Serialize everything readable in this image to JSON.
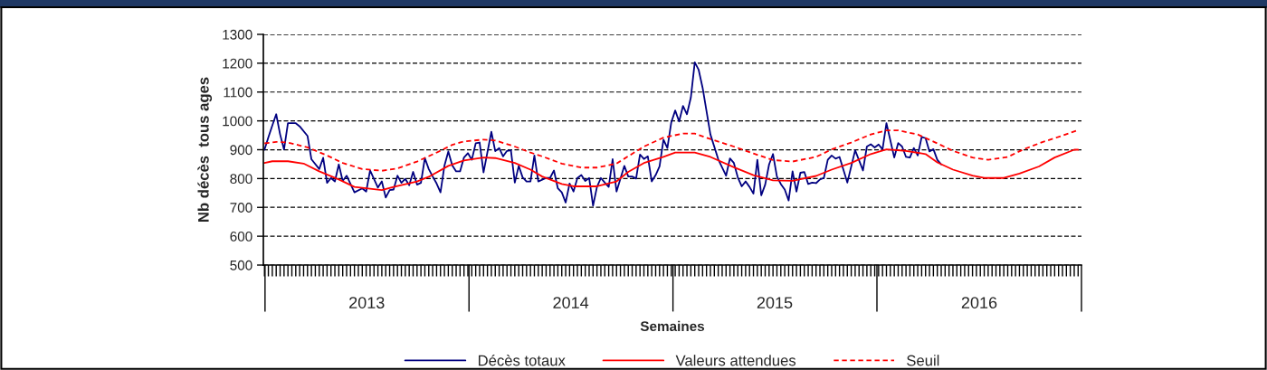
{
  "chart_data": {
    "type": "line",
    "xlabel": "Semaines",
    "ylabel": "Nb décès  tous ages",
    "xlim": [
      "2012-12-29",
      "2017-01-01"
    ],
    "xticks": [
      {
        "value": "2013-01-01",
        "label": null
      },
      {
        "value": "2013-07-02",
        "label": "2013"
      },
      {
        "value": "2014-01-01",
        "label": null
      },
      {
        "value": "2014-07-02",
        "label": "2014"
      },
      {
        "value": "2015-01-01",
        "label": null
      },
      {
        "value": "2015-07-02",
        "label": "2015"
      },
      {
        "value": "2016-01-01",
        "label": null
      },
      {
        "value": "2016-07-02",
        "label": "2016"
      },
      {
        "value": "2017-01-01",
        "label": null
      }
    ],
    "ylim": [
      500,
      1300
    ],
    "yticks": [
      500,
      600,
      700,
      800,
      900,
      1000,
      1100,
      1200,
      1300
    ],
    "grid": "y",
    "legend": "bottom",
    "series": [
      {
        "name": "Décès totaux",
        "color": "#000080",
        "line_style": "solid",
        "x": [
          "2012-12-31",
          "2013-01-07",
          "2013-01-14",
          "2013-01-21",
          "2013-01-28",
          "2013-02-04",
          "2013-02-11",
          "2013-02-25",
          "2013-03-04",
          "2013-03-18",
          "2013-03-25",
          "2013-04-08",
          "2013-04-15",
          "2013-04-22",
          "2013-04-29",
          "2013-05-06",
          "2013-05-13",
          "2013-05-20",
          "2013-05-27",
          "2013-06-10",
          "2013-06-24",
          "2013-07-01",
          "2013-07-08",
          "2013-07-22",
          "2013-07-29",
          "2013-08-05",
          "2013-08-12",
          "2013-08-19",
          "2013-08-26",
          "2013-09-02",
          "2013-09-09",
          "2013-09-16",
          "2013-09-23",
          "2013-09-30",
          "2013-10-07",
          "2013-10-14",
          "2013-10-21",
          "2013-10-28",
          "2013-11-04",
          "2013-11-11",
          "2013-11-18",
          "2013-11-25",
          "2013-12-02",
          "2013-12-09",
          "2013-12-16",
          "2013-12-23",
          "2013-12-30",
          "2014-01-06",
          "2014-01-13",
          "2014-01-20",
          "2014-01-27",
          "2014-02-10",
          "2014-02-17",
          "2014-02-24",
          "2014-03-03",
          "2014-03-10",
          "2014-03-17",
          "2014-03-24",
          "2014-03-31",
          "2014-04-07",
          "2014-04-14",
          "2014-04-21",
          "2014-04-28",
          "2014-05-05",
          "2014-05-19",
          "2014-05-26",
          "2014-06-02",
          "2014-06-09",
          "2014-06-16",
          "2014-06-23",
          "2014-06-30",
          "2014-07-07",
          "2014-07-14",
          "2014-07-21",
          "2014-07-28",
          "2014-08-04",
          "2014-08-11",
          "2014-08-18",
          "2014-08-25",
          "2014-09-01",
          "2014-09-08",
          "2014-09-15",
          "2014-09-22",
          "2014-10-06",
          "2014-10-13",
          "2014-10-20",
          "2014-10-27",
          "2014-11-03",
          "2014-11-10",
          "2014-11-17",
          "2014-11-24",
          "2014-12-01",
          "2014-12-08",
          "2014-12-15",
          "2014-12-22",
          "2014-12-29",
          "2015-01-05",
          "2015-01-12",
          "2015-01-19",
          "2015-01-26",
          "2015-02-02",
          "2015-02-09",
          "2015-02-16",
          "2015-02-23",
          "2015-03-09",
          "2015-03-23",
          "2015-04-06",
          "2015-04-13",
          "2015-04-20",
          "2015-04-27",
          "2015-05-04",
          "2015-05-11",
          "2015-05-18",
          "2015-05-25",
          "2015-06-01",
          "2015-06-08",
          "2015-06-15",
          "2015-06-22",
          "2015-06-29",
          "2015-07-06",
          "2015-07-13",
          "2015-07-20",
          "2015-07-27",
          "2015-08-03",
          "2015-08-10",
          "2015-08-17",
          "2015-08-24",
          "2015-08-31",
          "2015-09-07",
          "2015-09-14",
          "2015-09-21",
          "2015-09-28",
          "2015-10-05",
          "2015-10-12",
          "2015-10-19",
          "2015-10-26",
          "2015-11-09",
          "2015-11-23",
          "2015-12-07",
          "2015-12-14",
          "2015-12-21",
          "2015-12-28",
          "2016-01-04",
          "2016-01-11",
          "2016-01-18",
          "2016-02-01",
          "2016-02-08",
          "2016-02-15",
          "2016-02-22",
          "2016-02-29",
          "2016-03-07",
          "2016-03-14",
          "2016-03-21",
          "2016-03-28",
          "2016-04-04",
          "2016-04-11",
          "2016-04-18",
          "2016-04-25"
        ],
        "values": [
          900,
          943,
          984,
          1023,
          953,
          901,
          992,
          992,
          981,
          948,
          867,
          833,
          872,
          785,
          802,
          790,
          849,
          792,
          810,
          752,
          766,
          755,
          828,
          769,
          790,
          734,
          760,
          762,
          810,
          785,
          799,
          777,
          823,
          779,
          785,
          871,
          833,
          807,
          783,
          752,
          844,
          894,
          846,
          825,
          825,
          873,
          888,
          865,
          922,
          925,
          821,
          962,
          895,
          906,
          877,
          896,
          898,
          786,
          844,
          804,
          790,
          790,
          880,
          790,
          802,
          802,
          828,
          766,
          752,
          717,
          783,
          755,
          802,
          812,
          792,
          802,
          706,
          771,
          802,
          786,
          771,
          867,
          755,
          844,
          807,
          807,
          800,
          883,
          868,
          877,
          790,
          812,
          842,
          935,
          906,
          995,
          1036,
          998,
          1052,
          1023,
          1081,
          1203,
          1177,
          1115,
          953,
          867,
          810,
          870,
          854,
          804,
          773,
          790,
          771,
          748,
          865,
          742,
          779,
          849,
          885,
          807,
          781,
          762,
          724,
          825,
          755,
          820,
          823,
          781,
          786,
          784,
          797,
          802,
          865,
          880,
          869,
          875,
          786,
          898,
          828,
          911,
          919,
          908,
          918,
          901,
          992,
          873,
          923,
          911,
          875,
          873,
          906,
          880,
          944,
          940,
          894,
          902,
          865,
          849
        ]
      },
      {
        "name": "Valeurs attendues",
        "color": "#ff0000",
        "line_style": "solid",
        "x": [
          "2012-12-31",
          "2013-01-14",
          "2013-02-11",
          "2013-03-11",
          "2013-04-08",
          "2013-05-13",
          "2013-06-10",
          "2013-07-29",
          "2013-08-19",
          "2013-09-30",
          "2013-10-21",
          "2013-11-25",
          "2013-12-23",
          "2014-01-27",
          "2014-02-17",
          "2014-03-24",
          "2014-04-21",
          "2014-05-12",
          "2014-06-16",
          "2014-07-07",
          "2014-08-18",
          "2014-09-22",
          "2014-10-13",
          "2014-11-10",
          "2014-12-15",
          "2015-01-05",
          "2015-02-09",
          "2015-03-09",
          "2015-04-20",
          "2015-05-25",
          "2015-06-29",
          "2015-08-03",
          "2015-09-14",
          "2015-10-12",
          "2015-11-16",
          "2015-12-21",
          "2016-01-18",
          "2016-02-22",
          "2016-03-28",
          "2016-04-18",
          "2016-05-16",
          "2016-06-20",
          "2016-07-11",
          "2016-08-15",
          "2016-09-12",
          "2016-10-17",
          "2016-11-14",
          "2016-12-19",
          "2016-12-26"
        ],
        "values": [
          854,
          860,
          860,
          852,
          825,
          797,
          771,
          760,
          771,
          790,
          806,
          844,
          863,
          873,
          871,
          854,
          831,
          807,
          781,
          773,
          773,
          790,
          823,
          854,
          875,
          890,
          890,
          875,
          839,
          812,
          794,
          792,
          809,
          831,
          854,
          885,
          901,
          896,
          885,
          856,
          831,
          810,
          802,
          802,
          817,
          842,
          873,
          900,
          900
        ]
      },
      {
        "name": "Seuil",
        "color": "#ff0000",
        "line_style": "dashed",
        "x": [
          "2012-12-31",
          "2013-01-21",
          "2013-02-11",
          "2013-03-18",
          "2013-04-22",
          "2013-05-20",
          "2013-06-24",
          "2013-07-29",
          "2013-08-26",
          "2013-09-30",
          "2013-11-04",
          "2013-12-02",
          "2013-12-23",
          "2014-01-27",
          "2014-02-17",
          "2014-03-24",
          "2014-04-21",
          "2014-05-12",
          "2014-06-16",
          "2014-07-21",
          "2014-08-18",
          "2014-09-22",
          "2014-10-06",
          "2014-11-10",
          "2014-12-15",
          "2015-01-19",
          "2015-02-09",
          "2015-03-09",
          "2015-04-20",
          "2015-05-25",
          "2015-06-29",
          "2015-08-03",
          "2015-09-14",
          "2015-10-12",
          "2015-11-16",
          "2015-12-21",
          "2016-01-18",
          "2016-02-08",
          "2016-03-14",
          "2016-04-18",
          "2016-05-16",
          "2016-06-20",
          "2016-07-18",
          "2016-08-22",
          "2016-09-19",
          "2016-10-24",
          "2016-11-28",
          "2016-12-26"
        ],
        "values": [
          922,
          927,
          925,
          908,
          880,
          854,
          833,
          827,
          835,
          859,
          890,
          917,
          929,
          935,
          932,
          911,
          890,
          877,
          852,
          838,
          838,
          852,
          869,
          911,
          942,
          956,
          956,
          937,
          911,
          887,
          864,
          859,
          875,
          901,
          925,
          953,
          967,
          967,
          953,
          922,
          896,
          873,
          865,
          875,
          901,
          927,
          949,
          968
        ]
      }
    ]
  }
}
